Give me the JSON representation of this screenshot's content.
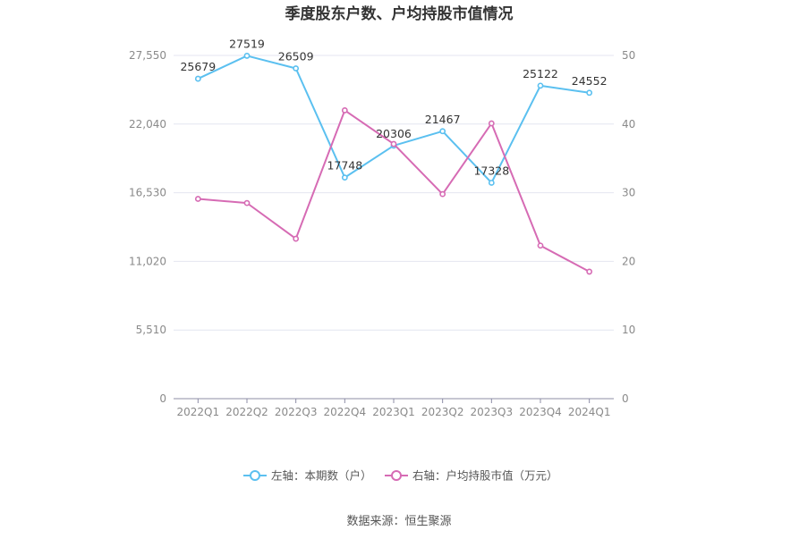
{
  "chart_data": {
    "type": "line",
    "title": "季度股东户数、户均持股市值情况",
    "categories": [
      "2022Q1",
      "2022Q2",
      "2022Q3",
      "2022Q4",
      "2023Q1",
      "2023Q2",
      "2023Q3",
      "2023Q4",
      "2024Q1"
    ],
    "left_axis": {
      "ylim": [
        0,
        27550
      ],
      "ticks": [
        "0",
        "5,510",
        "11,020",
        "16,530",
        "22,040",
        "27,550"
      ]
    },
    "right_axis": {
      "ylim": [
        0,
        50
      ],
      "ticks": [
        "0",
        "10",
        "20",
        "30",
        "40",
        "50"
      ]
    },
    "series": [
      {
        "name": "左轴：本期数（户）",
        "axis": "left",
        "color": "#5bc0f0",
        "values": [
          25679,
          27519,
          26509,
          17748,
          20306,
          21467,
          17328,
          25122,
          24552
        ],
        "labels": [
          "25679",
          "27519",
          "26509",
          "17748",
          "20306",
          "21467",
          "17328",
          "25122",
          "24552"
        ]
      },
      {
        "name": "右轴：户均持股市值（万元）",
        "axis": "right",
        "color": "#d66bb4",
        "values": [
          29.1,
          28.5,
          23.3,
          42.0,
          37.1,
          29.8,
          40.1,
          22.3,
          18.5
        ]
      }
    ],
    "grid": true,
    "legend_position": "bottom"
  },
  "source": "数据来源：恒生聚源"
}
